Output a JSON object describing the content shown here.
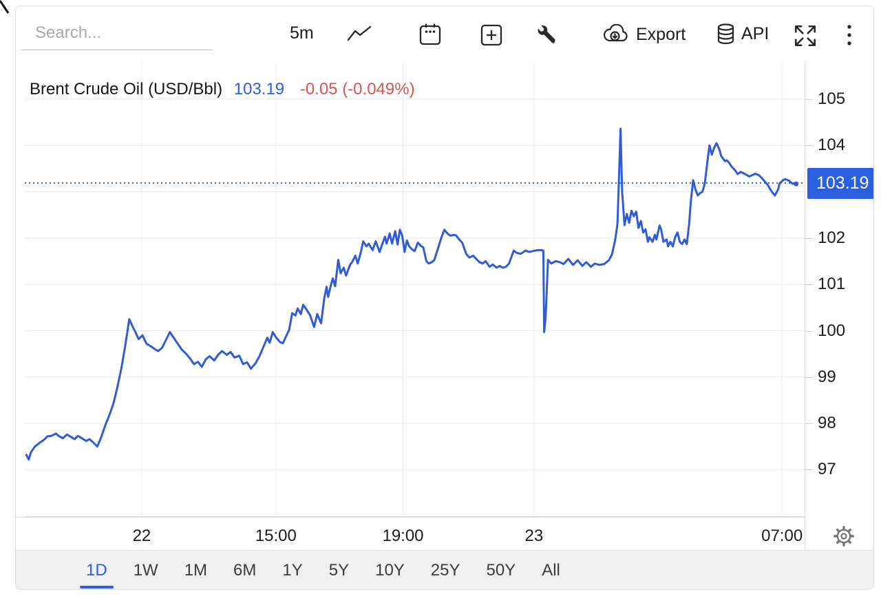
{
  "colors": {
    "accent": "#2a5fdf",
    "line": "#2f5cd6",
    "negative": "#d9534f",
    "grid": "#e9e9e9",
    "vgrid": "#ececec",
    "icon": "#262626",
    "gear": "#757575"
  },
  "toolbar": {
    "search_placeholder": "Search...",
    "interval_label": "5m",
    "export_label": "Export",
    "api_label": "API"
  },
  "header": {
    "instrument": "Brent Crude Oil (USD/Bbl)",
    "price": "103.19",
    "change": "-0.05 (-0.049%)"
  },
  "price_axis": {
    "current_label": "103.19",
    "labels": [
      {
        "text": "105",
        "value": 105
      },
      {
        "text": "104",
        "value": 104
      },
      {
        "text": "102",
        "value": 102
      },
      {
        "text": "101",
        "value": 101
      },
      {
        "text": "100",
        "value": 100
      },
      {
        "text": "99",
        "value": 99
      },
      {
        "text": "98",
        "value": 98
      },
      {
        "text": "97",
        "value": 97
      }
    ]
  },
  "range_tabs": {
    "active": "1D",
    "items": [
      "1D",
      "1W",
      "1M",
      "6M",
      "1Y",
      "5Y",
      "10Y",
      "25Y",
      "50Y",
      "All"
    ]
  },
  "chart_data": {
    "type": "line",
    "title": "Brent Crude Oil (USD/Bbl)",
    "last_price": 103.19,
    "change": -0.05,
    "change_pct": "-0.049%",
    "interval": "5m",
    "range": "1D",
    "ylim": [
      96,
      105.8
    ],
    "grid": true,
    "yticks": [
      97,
      98,
      99,
      100,
      101,
      102,
      103,
      104,
      105
    ],
    "current_price_line": 103.19,
    "xticks": [
      {
        "label": "22",
        "f": 0.15
      },
      {
        "label": "15:00",
        "f": 0.322
      },
      {
        "label": "19:00",
        "f": 0.485
      },
      {
        "label": "23",
        "f": 0.653
      },
      {
        "label": "07:00",
        "f": 0.971
      }
    ],
    "series": [
      {
        "name": "Brent Crude Oil",
        "points": [
          [
            0.002,
            97.32
          ],
          [
            0.005,
            97.22
          ],
          [
            0.008,
            97.38
          ],
          [
            0.013,
            97.5
          ],
          [
            0.019,
            97.58
          ],
          [
            0.025,
            97.65
          ],
          [
            0.029,
            97.72
          ],
          [
            0.034,
            97.73
          ],
          [
            0.04,
            97.78
          ],
          [
            0.044,
            97.72
          ],
          [
            0.049,
            97.68
          ],
          [
            0.054,
            97.76
          ],
          [
            0.058,
            97.72
          ],
          [
            0.064,
            97.66
          ],
          [
            0.068,
            97.73
          ],
          [
            0.073,
            97.68
          ],
          [
            0.079,
            97.62
          ],
          [
            0.083,
            97.66
          ],
          [
            0.087,
            97.6
          ],
          [
            0.093,
            97.5
          ],
          [
            0.098,
            97.7
          ],
          [
            0.103,
            97.95
          ],
          [
            0.109,
            98.2
          ],
          [
            0.114,
            98.45
          ],
          [
            0.119,
            98.8
          ],
          [
            0.124,
            99.2
          ],
          [
            0.129,
            99.7
          ],
          [
            0.134,
            100.25
          ],
          [
            0.138,
            100.1
          ],
          [
            0.141,
            100.0
          ],
          [
            0.146,
            99.82
          ],
          [
            0.151,
            99.9
          ],
          [
            0.156,
            99.72
          ],
          [
            0.162,
            99.66
          ],
          [
            0.167,
            99.6
          ],
          [
            0.171,
            99.56
          ],
          [
            0.176,
            99.63
          ],
          [
            0.181,
            99.8
          ],
          [
            0.186,
            99.97
          ],
          [
            0.191,
            99.85
          ],
          [
            0.196,
            99.72
          ],
          [
            0.201,
            99.6
          ],
          [
            0.207,
            99.5
          ],
          [
            0.212,
            99.4
          ],
          [
            0.217,
            99.28
          ],
          [
            0.222,
            99.33
          ],
          [
            0.227,
            99.22
          ],
          [
            0.232,
            99.38
          ],
          [
            0.237,
            99.45
          ],
          [
            0.243,
            99.36
          ],
          [
            0.248,
            99.48
          ],
          [
            0.253,
            99.56
          ],
          [
            0.259,
            99.48
          ],
          [
            0.264,
            99.54
          ],
          [
            0.269,
            99.42
          ],
          [
            0.275,
            99.46
          ],
          [
            0.28,
            99.28
          ],
          [
            0.285,
            99.32
          ],
          [
            0.29,
            99.18
          ],
          [
            0.296,
            99.3
          ],
          [
            0.301,
            99.45
          ],
          [
            0.306,
            99.65
          ],
          [
            0.311,
            99.85
          ],
          [
            0.314,
            99.74
          ],
          [
            0.318,
            99.97
          ],
          [
            0.322,
            99.86
          ],
          [
            0.327,
            99.76
          ],
          [
            0.331,
            99.73
          ],
          [
            0.335,
            99.88
          ],
          [
            0.339,
            100.02
          ],
          [
            0.343,
            100.38
          ],
          [
            0.347,
            100.33
          ],
          [
            0.35,
            100.48
          ],
          [
            0.354,
            100.36
          ],
          [
            0.357,
            100.56
          ],
          [
            0.362,
            100.44
          ],
          [
            0.366,
            100.33
          ],
          [
            0.371,
            100.08
          ],
          [
            0.375,
            100.36
          ],
          [
            0.38,
            100.16
          ],
          [
            0.384,
            100.7
          ],
          [
            0.387,
            100.95
          ],
          [
            0.389,
            100.73
          ],
          [
            0.393,
            101.02
          ],
          [
            0.395,
            101.13
          ],
          [
            0.398,
            100.96
          ],
          [
            0.402,
            101.53
          ],
          [
            0.405,
            101.24
          ],
          [
            0.409,
            101.36
          ],
          [
            0.412,
            101.19
          ],
          [
            0.417,
            101.42
          ],
          [
            0.42,
            101.49
          ],
          [
            0.424,
            101.62
          ],
          [
            0.427,
            101.45
          ],
          [
            0.431,
            101.7
          ],
          [
            0.434,
            101.93
          ],
          [
            0.438,
            101.82
          ],
          [
            0.441,
            101.88
          ],
          [
            0.446,
            101.74
          ],
          [
            0.45,
            101.93
          ],
          [
            0.455,
            101.7
          ],
          [
            0.458,
            101.85
          ],
          [
            0.462,
            102.03
          ],
          [
            0.464,
            101.88
          ],
          [
            0.468,
            102.1
          ],
          [
            0.471,
            101.88
          ],
          [
            0.475,
            102.15
          ],
          [
            0.478,
            101.86
          ],
          [
            0.481,
            102.18
          ],
          [
            0.484,
            102.05
          ],
          [
            0.487,
            101.7
          ],
          [
            0.49,
            101.95
          ],
          [
            0.493,
            101.82
          ],
          [
            0.497,
            101.75
          ],
          [
            0.5,
            101.72
          ],
          [
            0.504,
            101.9
          ],
          [
            0.508,
            101.83
          ],
          [
            0.511,
            101.8
          ],
          [
            0.515,
            101.5
          ],
          [
            0.518,
            101.45
          ],
          [
            0.522,
            101.48
          ],
          [
            0.525,
            101.52
          ],
          [
            0.53,
            101.78
          ],
          [
            0.534,
            102.0
          ],
          [
            0.538,
            102.18
          ],
          [
            0.542,
            102.1
          ],
          [
            0.546,
            102.05
          ],
          [
            0.55,
            102.07
          ],
          [
            0.553,
            102.06
          ],
          [
            0.557,
            101.97
          ],
          [
            0.561,
            101.9
          ],
          [
            0.566,
            101.66
          ],
          [
            0.57,
            101.58
          ],
          [
            0.575,
            101.62
          ],
          [
            0.579,
            101.55
          ],
          [
            0.583,
            101.48
          ],
          [
            0.587,
            101.45
          ],
          [
            0.591,
            101.5
          ],
          [
            0.596,
            101.38
          ],
          [
            0.6,
            101.43
          ],
          [
            0.605,
            101.36
          ],
          [
            0.609,
            101.4
          ],
          [
            0.613,
            101.36
          ],
          [
            0.617,
            101.38
          ],
          [
            0.621,
            101.45
          ],
          [
            0.627,
            101.73
          ],
          [
            0.631,
            101.68
          ],
          [
            0.636,
            101.66
          ],
          [
            0.642,
            101.73
          ],
          [
            0.647,
            101.7
          ],
          [
            0.652,
            101.72
          ],
          [
            0.658,
            101.74
          ],
          [
            0.663,
            101.74
          ],
          [
            0.665,
            101.73
          ],
          [
            0.666,
            99.97
          ],
          [
            0.668,
            100.3
          ],
          [
            0.671,
            101.53
          ],
          [
            0.675,
            101.45
          ],
          [
            0.681,
            101.5
          ],
          [
            0.686,
            101.48
          ],
          [
            0.691,
            101.44
          ],
          [
            0.697,
            101.55
          ],
          [
            0.703,
            101.42
          ],
          [
            0.709,
            101.52
          ],
          [
            0.715,
            101.4
          ],
          [
            0.72,
            101.48
          ],
          [
            0.726,
            101.38
          ],
          [
            0.731,
            101.45
          ],
          [
            0.737,
            101.42
          ],
          [
            0.743,
            101.44
          ],
          [
            0.749,
            101.52
          ],
          [
            0.753,
            101.65
          ],
          [
            0.757,
            101.95
          ],
          [
            0.76,
            102.3
          ],
          [
            0.762,
            103.3
          ],
          [
            0.764,
            104.36
          ],
          [
            0.766,
            103.0
          ],
          [
            0.769,
            102.28
          ],
          [
            0.772,
            102.52
          ],
          [
            0.775,
            102.33
          ],
          [
            0.778,
            102.59
          ],
          [
            0.781,
            102.47
          ],
          [
            0.784,
            102.57
          ],
          [
            0.787,
            102.22
          ],
          [
            0.79,
            102.37
          ],
          [
            0.793,
            102.12
          ],
          [
            0.796,
            102.19
          ],
          [
            0.799,
            101.92
          ],
          [
            0.801,
            102.02
          ],
          [
            0.805,
            101.92
          ],
          [
            0.808,
            102.07
          ],
          [
            0.81,
            101.97
          ],
          [
            0.814,
            102.27
          ],
          [
            0.816,
            102.19
          ],
          [
            0.819,
            101.92
          ],
          [
            0.823,
            101.97
          ],
          [
            0.825,
            101.82
          ],
          [
            0.828,
            101.92
          ],
          [
            0.831,
            101.82
          ],
          [
            0.834,
            102.02
          ],
          [
            0.837,
            102.12
          ],
          [
            0.84,
            101.92
          ],
          [
            0.843,
            101.87
          ],
          [
            0.846,
            101.97
          ],
          [
            0.849,
            101.87
          ],
          [
            0.852,
            102.32
          ],
          [
            0.854,
            102.77
          ],
          [
            0.857,
            103.25
          ],
          [
            0.86,
            103.05
          ],
          [
            0.863,
            102.92
          ],
          [
            0.866,
            102.97
          ],
          [
            0.869,
            103.0
          ],
          [
            0.872,
            103.18
          ],
          [
            0.875,
            103.6
          ],
          [
            0.878,
            104.0
          ],
          [
            0.881,
            103.8
          ],
          [
            0.884,
            103.95
          ],
          [
            0.887,
            104.05
          ],
          [
            0.891,
            103.9
          ],
          [
            0.893,
            103.77
          ],
          [
            0.898,
            103.66
          ],
          [
            0.9,
            103.68
          ],
          [
            0.903,
            103.63
          ],
          [
            0.906,
            103.55
          ],
          [
            0.911,
            103.46
          ],
          [
            0.914,
            103.38
          ],
          [
            0.918,
            103.43
          ],
          [
            0.922,
            103.4
          ],
          [
            0.926,
            103.36
          ],
          [
            0.929,
            103.33
          ],
          [
            0.933,
            103.36
          ],
          [
            0.937,
            103.39
          ],
          [
            0.942,
            103.35
          ],
          [
            0.946,
            103.28
          ],
          [
            0.951,
            103.18
          ],
          [
            0.953,
            103.14
          ],
          [
            0.958,
            103.0
          ],
          [
            0.962,
            102.92
          ],
          [
            0.966,
            103.05
          ],
          [
            0.968,
            103.18
          ],
          [
            0.973,
            103.26
          ],
          [
            0.975,
            103.27
          ],
          [
            0.98,
            103.24
          ],
          [
            0.984,
            103.18
          ],
          [
            0.989,
            103.17
          ]
        ]
      }
    ]
  }
}
